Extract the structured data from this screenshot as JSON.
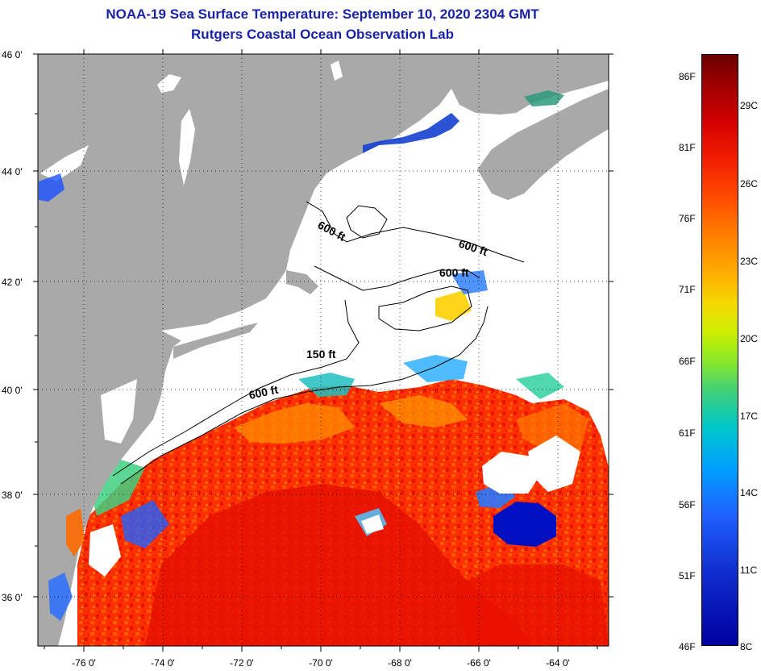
{
  "title": {
    "line1": "NOAA-19 Sea Surface Temperature:  September 10, 2020 2304 GMT",
    "line2": "Rutgers Coastal Ocean Observation Lab"
  },
  "map": {
    "lat_labels": [
      "46 0'",
      "44 0'",
      "42 0'",
      "40 0'",
      "38 0'",
      "36 0'"
    ],
    "lon_labels": [
      "-76 0'",
      "-74 0'",
      "-72 0'",
      "-70 0'",
      "-68 0'",
      "-66 0'",
      "-64 0'"
    ],
    "contour_labels": [
      "600 ft",
      "600 ft",
      "600 ft",
      "150 ft",
      "600 ft"
    ],
    "colors": {
      "land": "#a9a9a9",
      "cloud": "#ffffff",
      "warm": "#ff2a00",
      "hot": "#e81000",
      "mid": "#ff7a00",
      "cool": "#1a5cff",
      "cold": "#0010c0"
    }
  },
  "colorbar": {
    "fahrenheit_labels": [
      "86F",
      "81F",
      "76F",
      "71F",
      "66F",
      "61F",
      "56F",
      "51F",
      "46F"
    ],
    "celsius_labels": [
      "29C",
      "26C",
      "23C",
      "20C",
      "17C",
      "14C",
      "11C",
      "8C"
    ]
  }
}
